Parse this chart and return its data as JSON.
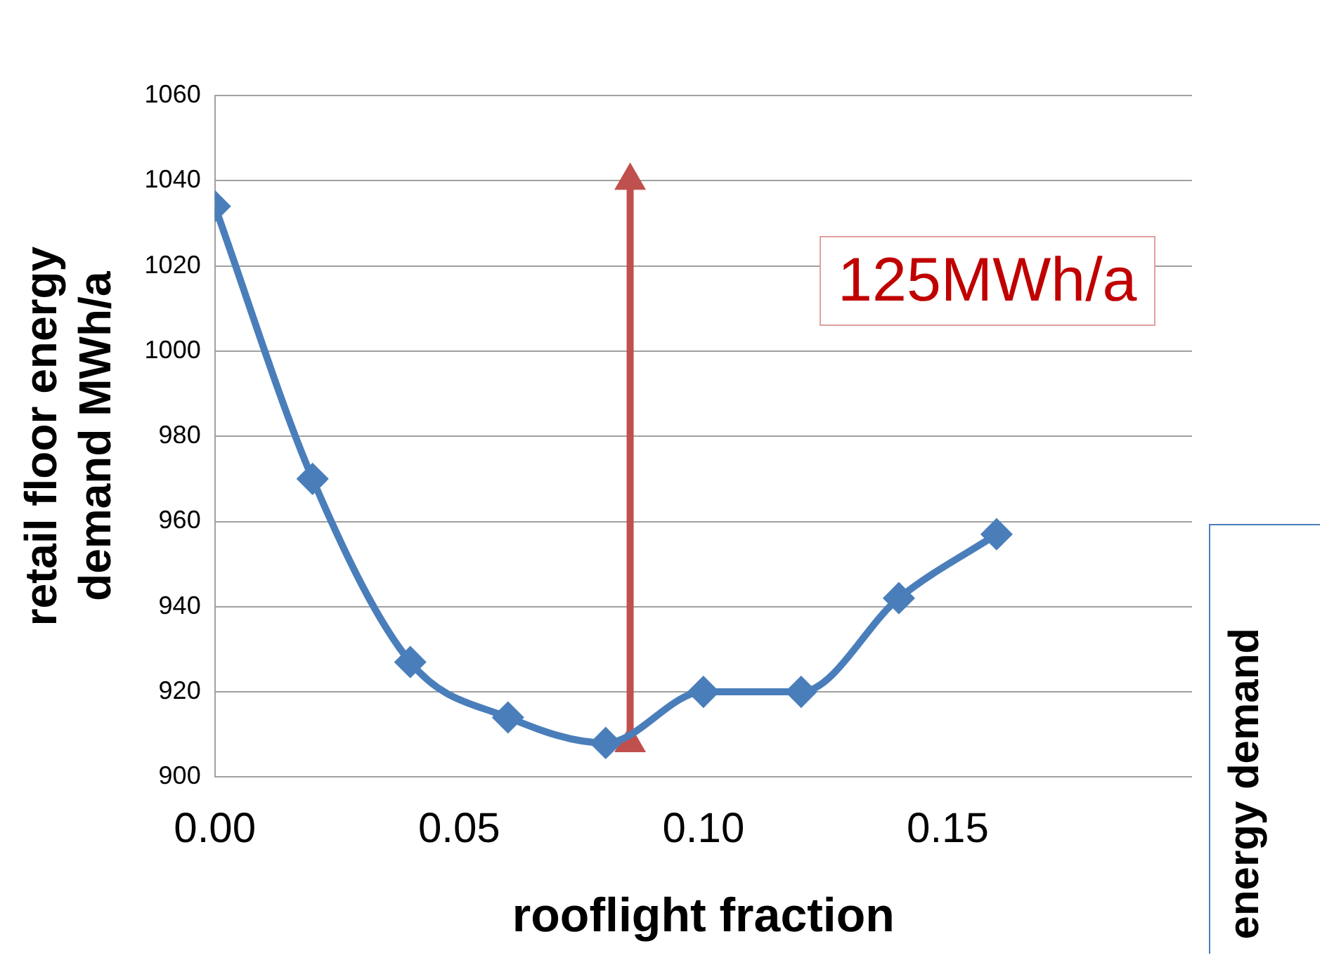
{
  "chart_data": {
    "type": "line",
    "xlabel": "rooflight fraction",
    "ylabel": "retail floor energy\ndemand MWh/a",
    "x": [
      0,
      0.02,
      0.04,
      0.06,
      0.08,
      0.1,
      0.12,
      0.14,
      0.16
    ],
    "series": [
      {
        "color": "#4a7ebb",
        "values": [
          1034,
          970,
          927,
          914,
          908,
          920,
          920,
          942,
          957
        ]
      },
      {
        "color": "#c0504d",
        "x": [
          0.085,
          0.085
        ],
        "values": [
          908,
          1040
        ],
        "marker": "triangle"
      }
    ],
    "xlim": [
      0,
      0.2
    ],
    "xticks": [
      {
        "value": 0,
        "label": "0.00"
      },
      {
        "value": 0.05,
        "label": "0.05"
      },
      {
        "value": 0.1,
        "label": "0.10"
      },
      {
        "value": 0.15,
        "label": "0.15"
      }
    ],
    "ylim": [
      900,
      1060
    ],
    "yticks": [
      900,
      920,
      940,
      960,
      980,
      1000,
      1020,
      1040,
      1060
    ],
    "grid": "y",
    "legend": false,
    "marker": "diamond",
    "line_style": "solid",
    "annotations": [
      "125MWh/a",
      "energy demand"
    ]
  }
}
